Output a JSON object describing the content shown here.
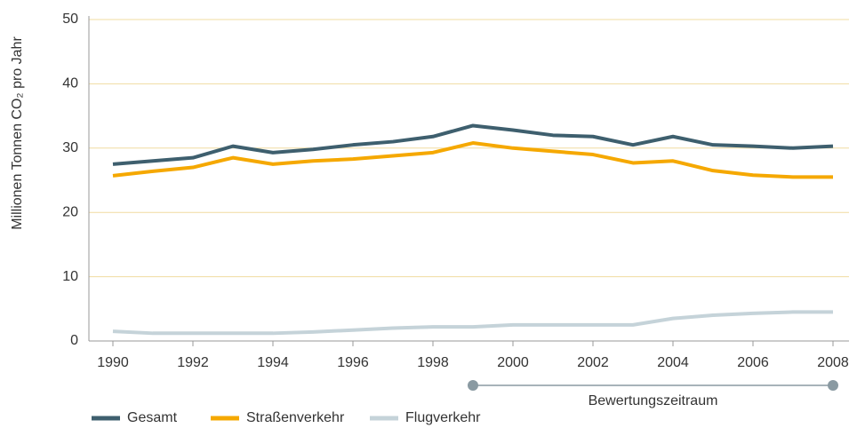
{
  "chart_data": {
    "type": "line",
    "y_label": "Millionen Tonnen CO₂ pro Jahr",
    "x": [
      1990,
      1991,
      1992,
      1993,
      1994,
      1995,
      1996,
      1997,
      1998,
      1999,
      2000,
      2001,
      2002,
      2003,
      2004,
      2005,
      2006,
      2007,
      2008
    ],
    "series": [
      {
        "name": "Gesamt",
        "color": "#3e5f6e",
        "values": [
          27.5,
          28,
          28.5,
          30.3,
          29.3,
          29.8,
          30.5,
          31,
          31.8,
          33.5,
          32.8,
          32,
          31.8,
          30.5,
          31.8,
          30.5,
          30.3,
          30,
          30.3
        ]
      },
      {
        "name": "Straßenverkehr",
        "color": "#f5a800",
        "values": [
          25.7,
          26.4,
          27,
          28.5,
          27.5,
          28,
          28.3,
          28.8,
          29.3,
          30.8,
          30,
          29.5,
          29,
          27.7,
          28,
          26.5,
          25.8,
          25.5,
          25.5
        ]
      },
      {
        "name": "Flugverkehr",
        "color": "#c5d3d9",
        "values": [
          1.5,
          1.2,
          1.2,
          1.2,
          1.2,
          1.4,
          1.7,
          2,
          2.2,
          2.2,
          2.5,
          2.5,
          2.5,
          2.5,
          3.5,
          4,
          4.3,
          4.5,
          4.5
        ]
      }
    ],
    "xlim": [
      1989.4,
      2008.4
    ],
    "xticks": [
      1990,
      1992,
      1994,
      1996,
      1998,
      2000,
      2002,
      2004,
      2006,
      2008
    ],
    "ylim": [
      0,
      50
    ],
    "yticks": [
      0,
      10,
      20,
      30,
      40,
      50
    ],
    "grid": true,
    "period": {
      "label": "Bewertungszeitraum",
      "range": [
        1999,
        2008
      ]
    }
  }
}
